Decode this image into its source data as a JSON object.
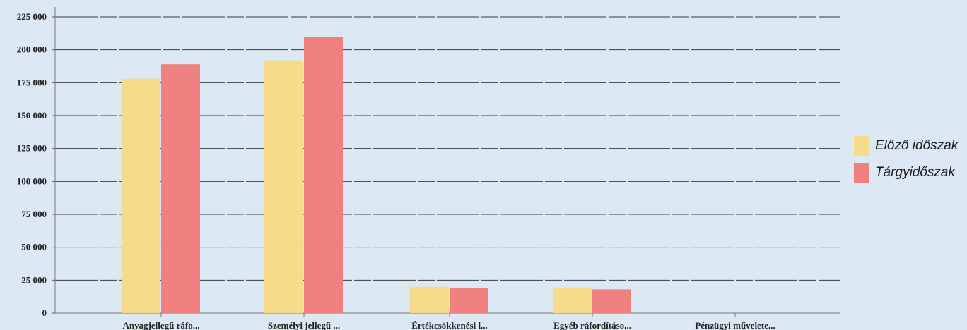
{
  "chart_data": {
    "type": "bar",
    "categories": [
      "Anyagjellegű ráfo...",
      "Személyi jellegű ...",
      "Értékcsökkenési l...",
      "Egyéb ráfordításo...",
      "Pénzügyi művelete..."
    ],
    "series": [
      {
        "name": "Előző időszak",
        "color": "#f6dc8a",
        "values": [
          178000,
          192000,
          20000,
          19000,
          0
        ]
      },
      {
        "name": "Tárgyidőszak",
        "color": "#ef8080",
        "values": [
          189000,
          210000,
          19000,
          18000,
          0
        ]
      }
    ],
    "yticks": [
      "0",
      "25 000",
      "50 000",
      "75 000",
      "100 000",
      "125 000",
      "150 000",
      "175 000",
      "200 000",
      "225 000"
    ],
    "ylim": [
      0,
      225000
    ],
    "grid": true,
    "legend_position": "right",
    "title": "",
    "xlabel": "",
    "ylabel": ""
  }
}
